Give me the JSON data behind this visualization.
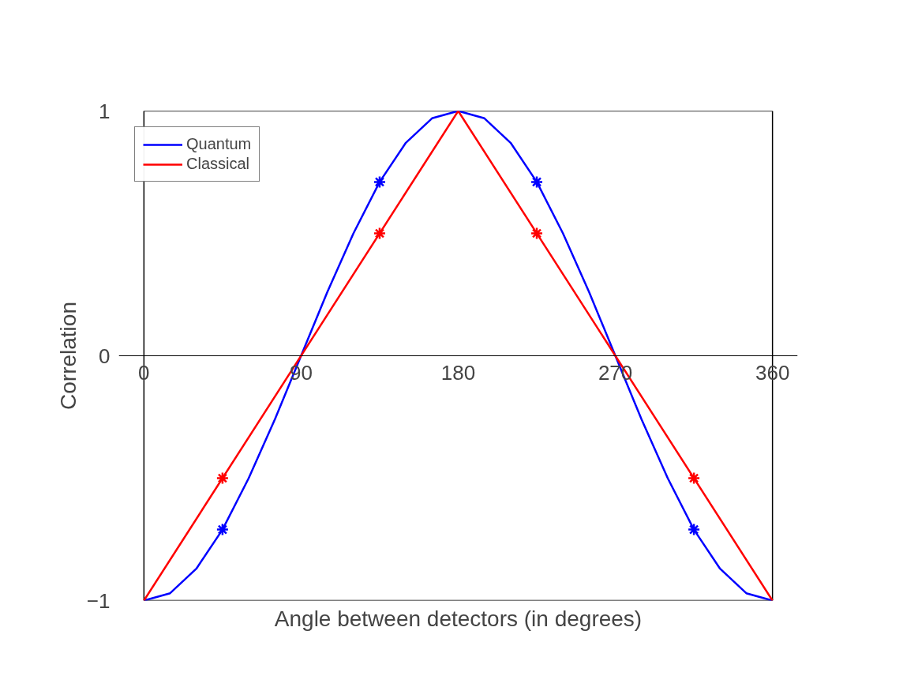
{
  "chart_data": {
    "type": "line",
    "xlabel": "Angle between detectors (in degrees)",
    "ylabel": "Correlation",
    "xlim": [
      0,
      360
    ],
    "ylim": [
      -1,
      1
    ],
    "xticks": [
      0,
      90,
      180,
      270,
      360
    ],
    "yticks": [
      -1,
      0,
      1
    ],
    "grid": false,
    "legend": "top left",
    "line_style": "solid",
    "series": [
      {
        "name": "Quantum",
        "color": "#0000ff",
        "x": [
          0,
          15,
          30,
          45,
          60,
          75,
          90,
          105,
          120,
          135,
          150,
          165,
          180,
          195,
          210,
          225,
          240,
          255,
          270,
          285,
          300,
          315,
          330,
          345,
          360
        ],
        "values": [
          -1,
          -0.97,
          -0.87,
          -0.71,
          -0.5,
          -0.26,
          0,
          0.26,
          0.5,
          0.71,
          0.87,
          0.97,
          1,
          0.97,
          0.87,
          0.71,
          0.5,
          0.26,
          0,
          -0.26,
          -0.5,
          -0.71,
          -0.87,
          -0.97,
          -1
        ]
      },
      {
        "name": "Classical",
        "color": "#ff0000",
        "x": [
          0,
          180,
          360
        ],
        "values": [
          -1,
          1,
          -1
        ]
      },
      {
        "type": "scatter",
        "marker": "cross",
        "color": "#0000ff",
        "x": [
          45,
          135,
          225,
          315
        ],
        "values": [
          -0.71,
          0.71,
          0.71,
          -0.71
        ]
      },
      {
        "type": "scatter",
        "marker": "cross",
        "color": "#ff0000",
        "x": [
          45,
          135,
          225,
          315
        ],
        "values": [
          -0.5,
          0.5,
          0.5,
          -0.5
        ]
      }
    ]
  }
}
